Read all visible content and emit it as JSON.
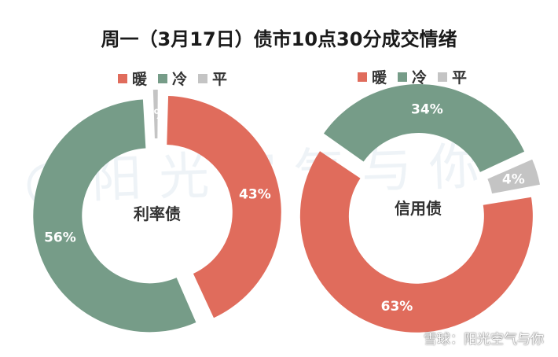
{
  "title": "周一（3月17日）债市10点30分成交情绪",
  "colors": {
    "warm": "#E06C5C",
    "cold": "#769C88",
    "flat": "#C4C4C4"
  },
  "watermark_bg": "@阳光空气与你",
  "watermark_footer": "雪球：阳光空气与你",
  "chart_data": [
    {
      "type": "pie",
      "center_label": "利率债",
      "legend": [
        "暖",
        "冷",
        "平"
      ],
      "slices": [
        {
          "name": "暖",
          "value": 43,
          "label": "43%"
        },
        {
          "name": "冷",
          "value": 56,
          "label": "56%"
        },
        {
          "name": "平",
          "value": 1,
          "label": "1%"
        }
      ]
    },
    {
      "type": "pie",
      "center_label": "信用债",
      "legend": [
        "暖",
        "冷",
        "平"
      ],
      "slices": [
        {
          "name": "暖",
          "value": 63,
          "label": "63%"
        },
        {
          "name": "冷",
          "value": 34,
          "label": "34%"
        },
        {
          "name": "平",
          "value": 4,
          "label": "4%"
        }
      ]
    }
  ]
}
